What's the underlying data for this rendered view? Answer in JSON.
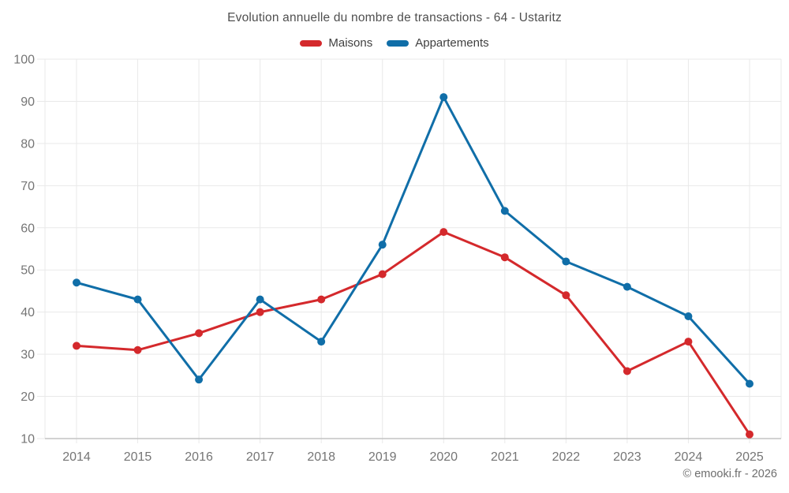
{
  "page": {
    "title": "Evolution annuelle du nombre de transactions - 64 - Ustaritz",
    "footer_credit": "© emooki.fr - 2026"
  },
  "legend": {
    "items": [
      {
        "label": "Maisons",
        "color": "#d4292c"
      },
      {
        "label": "Appartements",
        "color": "#106ea8"
      }
    ]
  },
  "chart_data": {
    "type": "line",
    "title": "Evolution annuelle du nombre de transactions - 64 - Ustaritz",
    "categories": [
      "2014",
      "2015",
      "2016",
      "2017",
      "2018",
      "2019",
      "2020",
      "2021",
      "2022",
      "2023",
      "2024",
      "2025"
    ],
    "series": [
      {
        "name": "Maisons",
        "color": "#d4292c",
        "values": [
          32,
          31,
          35,
          40,
          43,
          49,
          59,
          53,
          44,
          26,
          33,
          11
        ]
      },
      {
        "name": "Appartements",
        "color": "#106ea8",
        "values": [
          47,
          43,
          24,
          43,
          33,
          56,
          91,
          64,
          52,
          46,
          39,
          23
        ]
      }
    ],
    "ylim": [
      10,
      100
    ],
    "y_ticks": [
      10,
      20,
      30,
      40,
      50,
      60,
      70,
      80,
      90,
      100
    ],
    "grid": true,
    "legend_position": "top",
    "xlabel": "",
    "ylabel": ""
  },
  "style": {
    "background": "#ffffff",
    "grid_color": "#e9e9e9",
    "axis_line_color": "#c4c4c4",
    "tick_label_color": "#757575",
    "marker_radius": 5,
    "line_width": 3
  }
}
